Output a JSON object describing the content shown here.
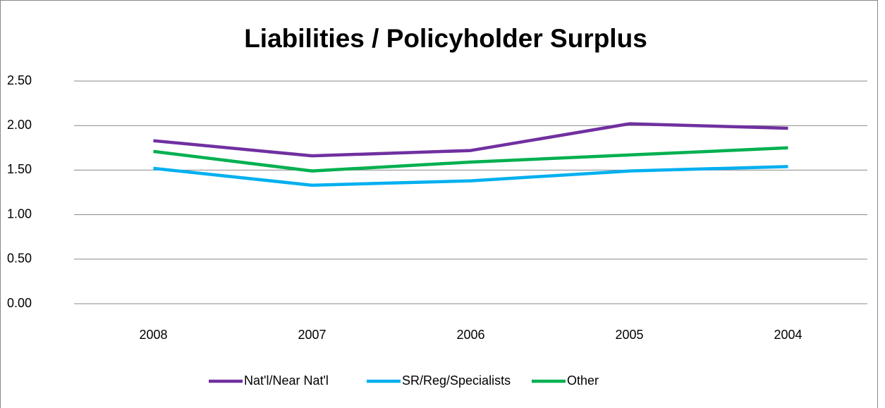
{
  "chart_data": {
    "type": "line",
    "title": "Liabilities / Policyholder Surplus",
    "categories": [
      "2008",
      "2007",
      "2006",
      "2005",
      "2004"
    ],
    "series": [
      {
        "name": "Nat'l/Near Nat'l",
        "color": "#7030a0",
        "values": [
          1.83,
          1.66,
          1.72,
          2.02,
          1.97
        ]
      },
      {
        "name": "SR/Reg/Specialists",
        "color": "#00b0f0",
        "values": [
          1.52,
          1.33,
          1.38,
          1.49,
          1.54
        ]
      },
      {
        "name": "Other",
        "color": "#00b050",
        "values": [
          1.71,
          1.49,
          1.59,
          1.67,
          1.75
        ]
      }
    ],
    "ylim": [
      0,
      2.5
    ],
    "yticks": [
      {
        "value": 0,
        "label": "0.00"
      },
      {
        "value": 0.5,
        "label": "0.50"
      },
      {
        "value": 1,
        "label": "1.00"
      },
      {
        "value": 1.5,
        "label": "1.50"
      },
      {
        "value": 2,
        "label": "2.00"
      },
      {
        "value": 2.5,
        "label": "2.50"
      }
    ],
    "grid": true,
    "legend": "bottom"
  }
}
